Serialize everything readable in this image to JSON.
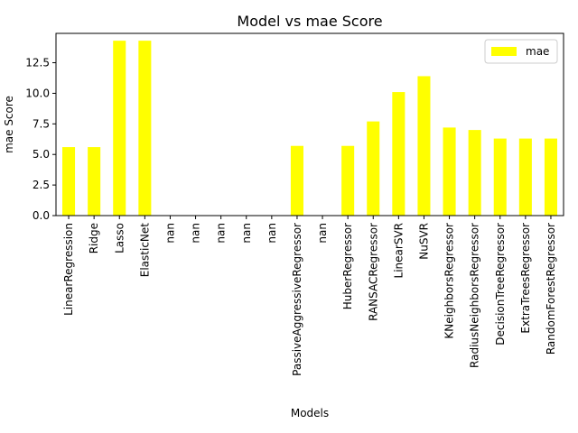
{
  "chart_data": {
    "type": "bar",
    "title": "Model vs mae Score",
    "xlabel": "Models",
    "ylabel": "mae Score",
    "ylim": [
      0,
      14.9
    ],
    "yticks": [
      0.0,
      2.5,
      5.0,
      7.5,
      10.0,
      12.5
    ],
    "ytick_labels": [
      "0.0",
      "2.5",
      "5.0",
      "7.5",
      "10.0",
      "12.5"
    ],
    "grid": false,
    "legend": {
      "position": "top-right",
      "entries": [
        "mae"
      ]
    },
    "categories": [
      "LinearRegression",
      "Ridge",
      "Lasso",
      "ElasticNet",
      "nan",
      "nan",
      "nan",
      "nan",
      "nan",
      "PassiveAggressiveRegressor",
      "nan",
      "HuberRegressor",
      "RANSACRegressor",
      "LinearSVR",
      "NuSVR",
      "KNeighborsRegressor",
      "RadiusNeighborsRegressor",
      "DecisionTreeRegressor",
      "ExtraTreesRegressor",
      "RandomForestRegressor"
    ],
    "series": [
      {
        "name": "mae",
        "color": "#ffff00",
        "values": [
          5.6,
          5.6,
          14.3,
          14.3,
          null,
          null,
          null,
          null,
          null,
          5.7,
          null,
          5.7,
          7.7,
          10.1,
          11.4,
          7.2,
          7.0,
          6.3,
          6.3,
          6.3
        ]
      }
    ]
  }
}
